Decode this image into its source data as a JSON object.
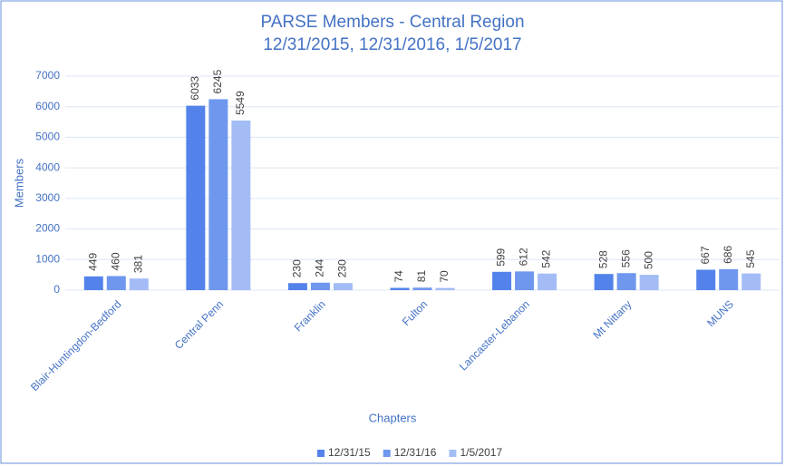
{
  "chart_data": {
    "type": "bar",
    "title": "PARSE Members - Central Region",
    "subtitle": "12/31/2015, 12/31/2016, 1/5/2017",
    "x_label": "Chapters",
    "y_label": "Members",
    "categories": [
      "Blair-Huntingdon-Bedford",
      "Central Penn",
      "Franklin",
      "Fulton",
      "Lancaster-Lebanon",
      "Mt Nittany",
      "MUNS"
    ],
    "series": [
      {
        "name": "12/31/15",
        "color": "#5383ea",
        "values": [
          449,
          6033,
          230,
          74,
          599,
          528,
          667
        ]
      },
      {
        "name": "12/31/16",
        "color": "#6f97ee",
        "values": [
          460,
          6245,
          244,
          81,
          612,
          556,
          686
        ]
      },
      {
        "name": "1/5/2017",
        "color": "#a3bcf5",
        "values": [
          381,
          5549,
          230,
          70,
          542,
          500,
          545
        ]
      }
    ],
    "ylim": [
      0,
      7000
    ],
    "yticks": [
      0,
      1000,
      2000,
      3000,
      4000,
      5000,
      6000,
      7000
    ],
    "grid": true,
    "legend": "bottom"
  }
}
